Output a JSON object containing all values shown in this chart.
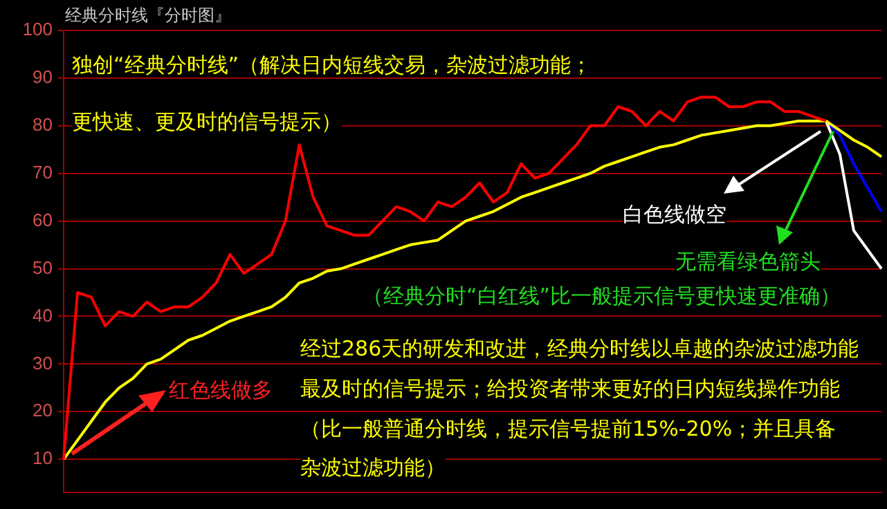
{
  "chart_data": {
    "type": "line",
    "title": "经典分时线『分时图』",
    "categories": [
      null,
      null,
      null,
      null,
      null,
      null,
      null,
      null,
      null,
      null,
      null,
      null,
      null,
      null,
      null,
      null,
      null,
      null,
      null,
      null,
      null,
      null,
      null,
      null,
      null,
      null,
      null,
      null,
      null,
      null,
      null,
      null,
      null,
      null,
      null,
      null,
      null,
      null,
      null,
      null,
      null,
      null,
      null,
      null,
      null,
      null,
      null,
      null,
      null,
      null,
      null,
      null,
      null,
      null,
      null,
      null,
      null,
      null,
      null,
      null
    ],
    "series": [
      {
        "color": "#ff0000",
        "values": [
          10,
          45,
          44,
          38,
          41,
          40,
          43,
          41,
          42,
          42,
          44,
          47,
          53,
          49,
          51,
          53,
          60,
          76,
          65,
          59,
          58,
          57,
          57,
          60,
          63,
          62,
          60,
          64,
          63,
          65,
          68,
          64,
          66,
          72,
          69,
          70,
          73,
          76,
          80,
          80,
          84,
          83,
          80,
          83,
          81,
          85,
          86,
          86,
          84,
          84,
          85,
          85,
          83,
          83,
          82,
          81,
          null,
          null,
          null,
          null
        ]
      },
      {
        "color": "#ffff00",
        "values": [
          10,
          14,
          18,
          22,
          25,
          27,
          30,
          31,
          33,
          35,
          36,
          37.5,
          39,
          40,
          41,
          42,
          44,
          47,
          48,
          49.5,
          50,
          51,
          52,
          53,
          54,
          55,
          55.5,
          56,
          58,
          60,
          61,
          62,
          63.5,
          65,
          66,
          67,
          68,
          69,
          70,
          71.5,
          72.5,
          73.5,
          74.5,
          75.5,
          76,
          77,
          78,
          78.5,
          79,
          79.5,
          80,
          80,
          80.5,
          81,
          81,
          81,
          79,
          77,
          75.5,
          73.5
        ]
      },
      {
        "color": "#ffffff",
        "values": [
          null,
          null,
          null,
          null,
          null,
          null,
          null,
          null,
          null,
          null,
          null,
          null,
          null,
          null,
          null,
          null,
          null,
          null,
          null,
          null,
          null,
          null,
          null,
          null,
          null,
          null,
          null,
          null,
          null,
          null,
          null,
          null,
          null,
          null,
          null,
          null,
          null,
          null,
          null,
          null,
          null,
          null,
          null,
          null,
          null,
          null,
          null,
          null,
          null,
          null,
          null,
          null,
          null,
          null,
          null,
          81,
          74,
          58,
          54,
          50
        ]
      },
      {
        "color": "#0000ff",
        "values": [
          null,
          null,
          null,
          null,
          null,
          null,
          null,
          null,
          null,
          null,
          null,
          null,
          null,
          null,
          null,
          null,
          null,
          null,
          null,
          null,
          null,
          null,
          null,
          null,
          null,
          null,
          null,
          null,
          null,
          null,
          null,
          null,
          null,
          null,
          null,
          null,
          null,
          null,
          null,
          null,
          null,
          null,
          null,
          null,
          null,
          null,
          null,
          null,
          null,
          null,
          null,
          null,
          null,
          null,
          null,
          81,
          78,
          72,
          67,
          62
        ]
      }
    ],
    "ylim": [
      3,
      100
    ],
    "yticks": [
      10,
      20,
      30,
      40,
      50,
      60,
      70,
      80,
      90,
      100
    ],
    "grid": "y",
    "legend": false,
    "tick_labels": "y",
    "marker": "none",
    "line_style": "solid",
    "annotations": [
      "独创“经典分时线”（解决日内短线交易，杂波过滤功能；",
      "更快速、更及时的信号提示）",
      "红色线做多",
      "白色线做空",
      "无需看绿色箭头",
      "（经典分时“白红线”比一般提示信号更快速更准确）",
      "经过286天的研发和改进，经典分时线以卓越的杂波过滤功能",
      "最及时的信号提示；给投资者带来更好的日内短线操作功能",
      "（比一般普通分时线，提示信号提前15%-20%；并且具备",
      "杂波过滤功能）"
    ]
  }
}
